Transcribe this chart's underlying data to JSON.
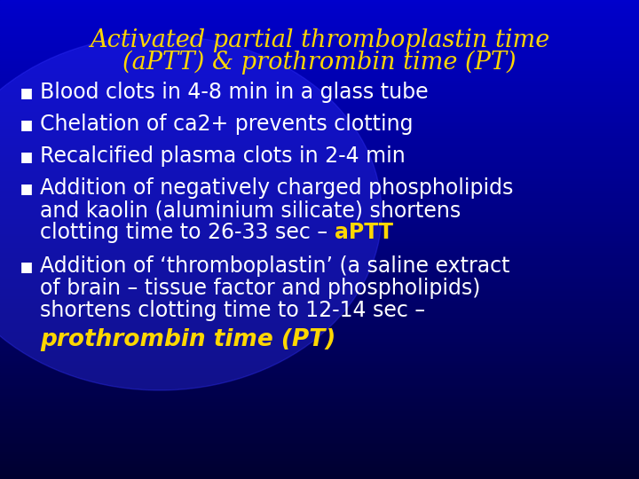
{
  "title_line1": "Activated partial thromboplastin time",
  "title_line2": "(aPTT) & prothrombin time (PT)",
  "title_color": "#FFD700",
  "bullet_color": "#FFFFFF",
  "aptt_color": "#FFD700",
  "pt_color": "#FFD700",
  "bg_top": "#0000BB",
  "bg_bottom": "#000033",
  "font_size_title": 19.5,
  "font_size_bullet": 17.0,
  "font_size_pt": 19.0,
  "bullet_char": "▪",
  "lines": [
    {
      "text": "Blood clots in 4-8 min in a glass tube",
      "bullet": true,
      "color": "#FFFFFF",
      "bold": false,
      "italic": false
    },
    {
      "text": "Chelation of ca2+ prevents clotting",
      "bullet": true,
      "color": "#FFFFFF",
      "bold": false,
      "italic": false
    },
    {
      "text": "Recalcified plasma clots in 2-4 min",
      "bullet": true,
      "color": "#FFFFFF",
      "bold": false,
      "italic": false
    },
    {
      "text": "Addition of negatively charged phospholipids",
      "bullet": true,
      "color": "#FFFFFF",
      "bold": false,
      "italic": false
    },
    {
      "text": "and kaolin (aluminium silicate) shortens",
      "bullet": false,
      "color": "#FFFFFF",
      "bold": false,
      "italic": false
    },
    {
      "text": "clotting time to 26-33 sec – ",
      "suffix": "aPTT",
      "suffix_color": "#FFD700",
      "suffix_bold": true,
      "bullet": false,
      "color": "#FFFFFF",
      "bold": false,
      "italic": false
    },
    {
      "text": "Addition of ‘thromboplastin’ (a saline extract",
      "bullet": true,
      "color": "#FFFFFF",
      "bold": false,
      "italic": false
    },
    {
      "text": "of brain – tissue factor and phospholipids)",
      "bullet": false,
      "color": "#FFFFFF",
      "bold": false,
      "italic": false
    },
    {
      "text": "shortens clotting time to 12-14 sec –",
      "bullet": false,
      "color": "#FFFFFF",
      "bold": false,
      "italic": false
    },
    {
      "text": "prothrombin time (PT)",
      "bullet": false,
      "color": "#FFD700",
      "bold": true,
      "italic": true
    }
  ]
}
